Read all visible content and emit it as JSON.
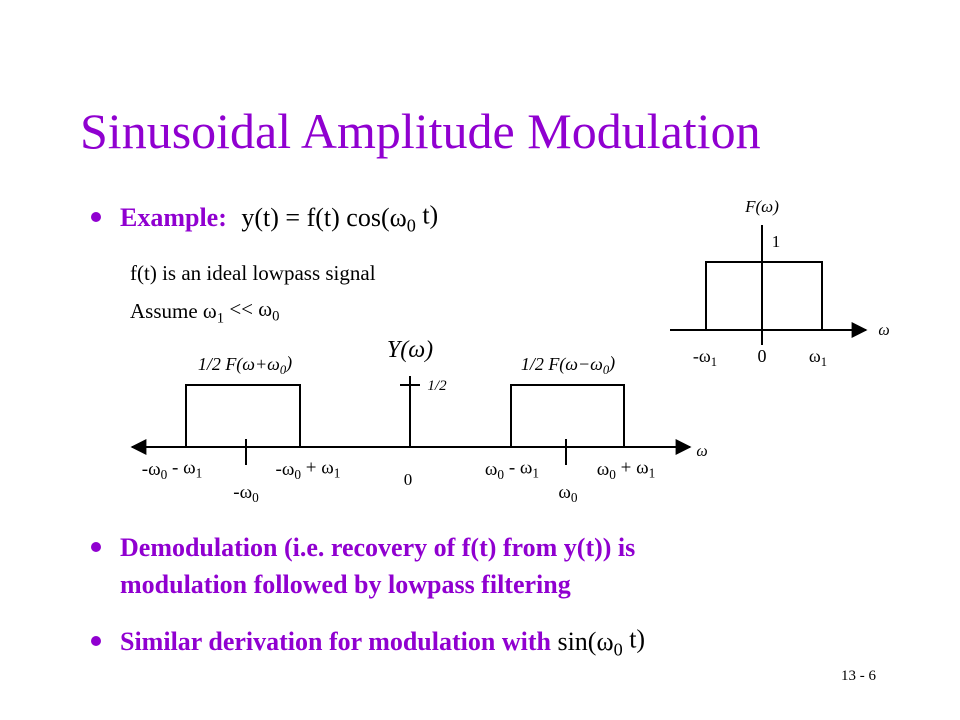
{
  "title": "Sinusoidal Amplitude Modulation",
  "example": {
    "label": "Example:",
    "runs": [
      "y(t) = f(t) cos(ω",
      "0",
      " t)"
    ]
  },
  "notes": [
    {
      "runs": [
        "f(t) is an ideal lowpass signal"
      ]
    },
    {
      "runs": [
        "Assume  ω",
        "1",
        " << ω",
        "0"
      ]
    }
  ],
  "spectrum_f": {
    "label": {
      "runs": [
        "F(ω)"
      ]
    },
    "height": {
      "runs": [
        "1"
      ]
    },
    "axis": {
      "runs": [
        "ω"
      ]
    },
    "ticks": [
      {
        "runs": [
          "-ω",
          "1"
        ]
      },
      {
        "runs": [
          "0"
        ]
      },
      {
        "runs": [
          "ω",
          "1"
        ]
      }
    ]
  },
  "spectrum_y": {
    "label": {
      "runs": [
        "Y(ω)"
      ]
    },
    "left_band": {
      "runs": [
        "1/2 F(ω+ω",
        "0",
        ")"
      ]
    },
    "right_band": {
      "runs": [
        "1/2 F(ω−ω",
        "0",
        ")"
      ]
    },
    "half": {
      "runs": [
        "1/2"
      ]
    },
    "axis": {
      "runs": [
        "ω"
      ]
    },
    "ticks": [
      {
        "runs": [
          "-ω",
          "0",
          " - ω",
          "1"
        ]
      },
      {
        "runs": [
          "-ω",
          "0"
        ]
      },
      {
        "runs": [
          "-ω",
          "0",
          " + ω",
          "1"
        ]
      },
      {
        "runs": [
          "0"
        ]
      },
      {
        "runs": [
          "ω",
          "0",
          " - ω",
          "1"
        ]
      },
      {
        "runs": [
          "ω",
          "0"
        ]
      },
      {
        "runs": [
          "ω",
          "0",
          " + ω",
          "1"
        ]
      }
    ]
  },
  "demodulation": {
    "lines": [
      "Demodulation (i.e. recovery of f(t) from y(t)) is",
      "modulation followed by lowpass filtering"
    ]
  },
  "similar": {
    "lead": "Similar derivation for modulation with ",
    "runs": [
      "sin(ω",
      "0",
      " t)"
    ]
  },
  "page_number": "13 - 6"
}
